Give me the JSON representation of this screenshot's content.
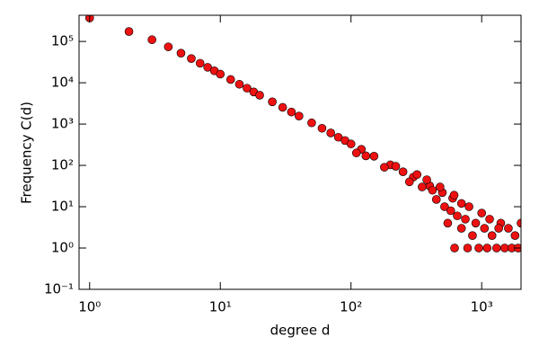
{
  "chart_data": {
    "type": "scatter",
    "xlabel": "degree d",
    "ylabel": "Frequency C(d)",
    "x": [
      1,
      2,
      3,
      4,
      5,
      6,
      7,
      8,
      9,
      10,
      12,
      14,
      16,
      18,
      20,
      25,
      30,
      35,
      40,
      50,
      60,
      70,
      80,
      90,
      100,
      120,
      150,
      200,
      250,
      300,
      400,
      500,
      600,
      700,
      800,
      1000,
      110,
      130,
      180,
      220,
      280,
      320,
      350,
      380,
      420,
      450,
      480,
      520,
      550,
      580,
      620,
      615,
      650,
      700,
      750,
      780,
      850,
      900,
      950,
      1050,
      1100,
      1200,
      1300,
      1400,
      1500,
      1600,
      1700,
      1800,
      1900,
      2000,
      1150,
      1350
    ],
    "y": [
      370000,
      174000,
      110000,
      74000,
      52000,
      38500,
      29700,
      23700,
      19500,
      16200,
      12000,
      9200,
      7400,
      6000,
      5000,
      3460,
      2540,
      1960,
      1560,
      1070,
      790,
      610,
      480,
      400,
      330,
      245,
      167,
      103,
      70,
      52,
      32,
      22,
      16,
      12,
      10,
      7,
      200,
      170,
      90,
      95,
      40,
      60,
      30,
      45,
      25,
      15,
      30,
      10,
      4,
      8,
      1,
      19,
      6,
      3,
      5,
      1,
      2,
      4,
      1,
      3,
      1,
      2,
      1,
      4,
      1,
      3,
      1,
      2,
      1,
      4,
      5,
      3
    ],
    "color": "#ee1111",
    "xscale": "log",
    "yscale": "log",
    "xlim": [
      0.83,
      2000
    ],
    "ylim": [
      0.1,
      430000
    ],
    "xticks": [
      {
        "value": 1,
        "label": "10⁰"
      },
      {
        "value": 10,
        "label": "10¹"
      },
      {
        "value": 100,
        "label": "10²"
      },
      {
        "value": 1000,
        "label": "10³"
      }
    ],
    "yticks": [
      {
        "value": 0.1,
        "label": "10⁻¹"
      },
      {
        "value": 1,
        "label": "10⁰"
      },
      {
        "value": 10,
        "label": "10¹"
      },
      {
        "value": 100,
        "label": "10²"
      },
      {
        "value": 1000,
        "label": "10³"
      },
      {
        "value": 10000,
        "label": "10⁴"
      },
      {
        "value": 100000,
        "label": "10⁵"
      }
    ]
  }
}
